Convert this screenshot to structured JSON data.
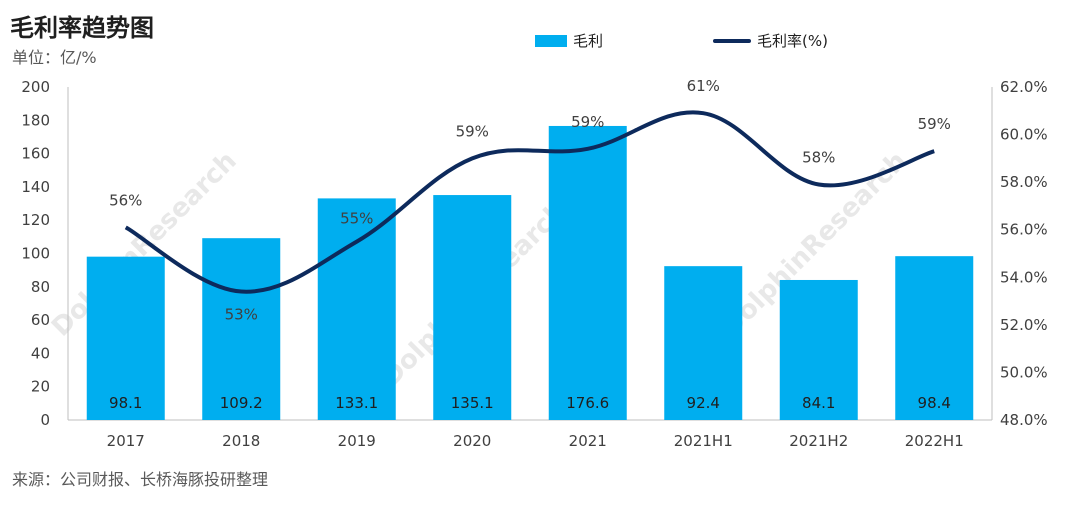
{
  "header": {
    "title": "毛利率趋势图",
    "unit": "单位：亿/%"
  },
  "legend": {
    "bar_label": "毛利",
    "line_label": "毛利率(%)"
  },
  "source": "来源：公司财报、长桥海豚投研整理",
  "watermark": "DolphinResearch",
  "colors": {
    "bar": "#00aeef",
    "line": "#0d2a5c"
  },
  "chart_data": {
    "type": "bar",
    "categories": [
      "2017",
      "2018",
      "2019",
      "2020",
      "2021",
      "2021H1",
      "2021H2",
      "2022H1"
    ],
    "series": [
      {
        "name": "毛利",
        "type": "bar",
        "axis": "left",
        "values": [
          98.1,
          109.2,
          133.1,
          135.1,
          176.6,
          92.4,
          84.1,
          98.4
        ],
        "labels": [
          "98.1",
          "109.2",
          "133.1",
          "135.1",
          "176.6",
          "92.4",
          "84.1",
          "98.4"
        ]
      },
      {
        "name": "毛利率(%)",
        "type": "line",
        "axis": "right",
        "values": [
          56.1,
          53.4,
          55.5,
          59.0,
          59.4,
          60.9,
          57.9,
          59.3
        ],
        "labels": [
          "56%",
          "53%",
          "55%",
          "59%",
          "59%",
          "61%",
          "58%",
          "59%"
        ]
      }
    ],
    "ylim_left": [
      0,
      200
    ],
    "yticks_left": [
      "200",
      "180",
      "160",
      "140",
      "120",
      "100",
      "80",
      "60",
      "40",
      "20",
      "0"
    ],
    "ylim_right": [
      48,
      62
    ],
    "yticks_right": [
      "62.0%",
      "60.0%",
      "58.0%",
      "56.0%",
      "54.0%",
      "52.0%",
      "50.0%",
      "48.0%"
    ],
    "grid": false,
    "legend_position": "top"
  }
}
